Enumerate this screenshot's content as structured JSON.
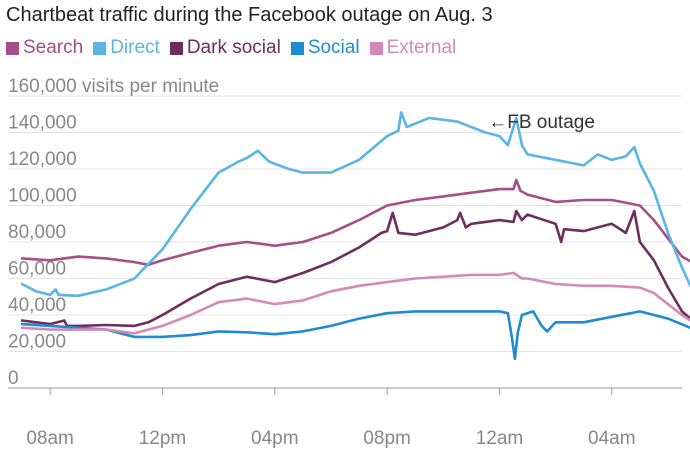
{
  "chart_data": {
    "type": "line",
    "title": "Chartbeat traffic during the Facebook outage on Aug. 3",
    "ylabel_unit": "visits per minute",
    "ylim": [
      0,
      160000
    ],
    "yticks": [
      0,
      20000,
      40000,
      60000,
      80000,
      100000,
      120000,
      140000,
      160000
    ],
    "ytick_labels": [
      "0",
      "20,000",
      "40,000",
      "60,000",
      "80,000",
      "100,000",
      "120,000",
      "140,000",
      "160,000 visits per minute"
    ],
    "xlim": [
      6.5,
      30.5
    ],
    "x_unit": "hour of day (Aug. 3, continuing past midnight)",
    "xticks": [
      8,
      12,
      16,
      20,
      24,
      28
    ],
    "xtick_labels": [
      "08am",
      "12pm",
      "04pm",
      "08pm",
      "12am",
      "04am"
    ],
    "grid": "horizontal",
    "legend_position": "top-left",
    "annotation": {
      "text": "←FB outage",
      "x": 23.6,
      "y": 142000
    },
    "series": [
      {
        "name": "Search",
        "color": "#a64d8b",
        "points": [
          [
            7,
            71000
          ],
          [
            8,
            70000
          ],
          [
            9,
            72000
          ],
          [
            10,
            71000
          ],
          [
            11,
            69000
          ],
          [
            11.5,
            67500
          ],
          [
            12,
            70000
          ],
          [
            13,
            74000
          ],
          [
            14,
            78000
          ],
          [
            15,
            80000
          ],
          [
            16,
            78000
          ],
          [
            17,
            80000
          ],
          [
            18,
            85000
          ],
          [
            19,
            92000
          ],
          [
            20,
            100000
          ],
          [
            21,
            103000
          ],
          [
            22,
            105000
          ],
          [
            23,
            107000
          ],
          [
            24,
            109000
          ],
          [
            24.5,
            109000
          ],
          [
            24.6,
            114000
          ],
          [
            24.75,
            108000
          ],
          [
            25,
            106000
          ],
          [
            26,
            102000
          ],
          [
            27,
            103000
          ],
          [
            28,
            103000
          ],
          [
            29,
            100000
          ],
          [
            29.5,
            92000
          ],
          [
            30,
            82000
          ],
          [
            30.5,
            72000
          ],
          [
            30.8,
            69500
          ]
        ]
      },
      {
        "name": "Direct",
        "color": "#5ab4e5",
        "points": [
          [
            7,
            57000
          ],
          [
            7.5,
            53000
          ],
          [
            8,
            51000
          ],
          [
            8.2,
            54000
          ],
          [
            8.3,
            51000
          ],
          [
            9,
            50500
          ],
          [
            10,
            54000
          ],
          [
            11,
            60000
          ],
          [
            12,
            76000
          ],
          [
            13,
            98000
          ],
          [
            14,
            118000
          ],
          [
            14.7,
            124000
          ],
          [
            15,
            126000
          ],
          [
            15.4,
            130000
          ],
          [
            15.8,
            124000
          ],
          [
            16.5,
            120000
          ],
          [
            17,
            118000
          ],
          [
            18,
            118000
          ],
          [
            19,
            125000
          ],
          [
            20,
            138000
          ],
          [
            20.4,
            141000
          ],
          [
            20.5,
            151000
          ],
          [
            20.7,
            143000
          ],
          [
            21.5,
            148000
          ],
          [
            22.5,
            146000
          ],
          [
            23.5,
            140000
          ],
          [
            24,
            138000
          ],
          [
            24.3,
            133000
          ],
          [
            24.6,
            148000
          ],
          [
            24.8,
            133000
          ],
          [
            25,
            128000
          ],
          [
            26,
            125000
          ],
          [
            27,
            122000
          ],
          [
            27.5,
            128000
          ],
          [
            28,
            125000
          ],
          [
            28.5,
            127000
          ],
          [
            28.8,
            132000
          ],
          [
            29,
            123000
          ],
          [
            29.5,
            108000
          ],
          [
            30,
            85000
          ],
          [
            30.5,
            66000
          ],
          [
            30.8,
            56000
          ]
        ]
      },
      {
        "name": "Dark social",
        "color": "#6e2d5c",
        "points": [
          [
            7,
            37000
          ],
          [
            8,
            35000
          ],
          [
            8.5,
            37000
          ],
          [
            8.6,
            34000
          ],
          [
            9,
            34000
          ],
          [
            10,
            34500
          ],
          [
            11,
            34000
          ],
          [
            11.5,
            36000
          ],
          [
            12,
            40000
          ],
          [
            13,
            49000
          ],
          [
            14,
            57000
          ],
          [
            15,
            61000
          ],
          [
            16,
            58000
          ],
          [
            17,
            63000
          ],
          [
            18,
            69000
          ],
          [
            19,
            77000
          ],
          [
            19.8,
            85000
          ],
          [
            20,
            86000
          ],
          [
            20.2,
            96000
          ],
          [
            20.4,
            85000
          ],
          [
            21,
            84000
          ],
          [
            22,
            88000
          ],
          [
            22.5,
            92000
          ],
          [
            22.6,
            96000
          ],
          [
            22.8,
            88000
          ],
          [
            23,
            90000
          ],
          [
            24,
            92000
          ],
          [
            24.5,
            91000
          ],
          [
            24.6,
            97000
          ],
          [
            24.8,
            92000
          ],
          [
            25,
            95000
          ],
          [
            26,
            90000
          ],
          [
            26.2,
            80000
          ],
          [
            26.3,
            87000
          ],
          [
            27,
            86000
          ],
          [
            27.5,
            88000
          ],
          [
            28,
            90000
          ],
          [
            28.5,
            85000
          ],
          [
            28.8,
            97000
          ],
          [
            29,
            80000
          ],
          [
            29.5,
            70000
          ],
          [
            30,
            55000
          ],
          [
            30.5,
            42000
          ],
          [
            30.8,
            38000
          ]
        ]
      },
      {
        "name": "Social",
        "color": "#1f8bd3",
        "points": [
          [
            7,
            35000
          ],
          [
            8,
            34000
          ],
          [
            9,
            33000
          ],
          [
            10,
            32000
          ],
          [
            11,
            28000
          ],
          [
            12,
            28000
          ],
          [
            13,
            29000
          ],
          [
            14,
            31000
          ],
          [
            15,
            30500
          ],
          [
            16,
            29500
          ],
          [
            17,
            31000
          ],
          [
            18,
            34000
          ],
          [
            19,
            38000
          ],
          [
            20,
            41000
          ],
          [
            21,
            42000
          ],
          [
            22,
            42000
          ],
          [
            23,
            42000
          ],
          [
            24,
            42000
          ],
          [
            24.3,
            41000
          ],
          [
            24.45,
            27000
          ],
          [
            24.55,
            16000
          ],
          [
            24.65,
            30000
          ],
          [
            24.8,
            40000
          ],
          [
            25,
            41000
          ],
          [
            25.2,
            42000
          ],
          [
            25.5,
            34000
          ],
          [
            25.7,
            31000
          ],
          [
            26,
            36000
          ],
          [
            27,
            36000
          ],
          [
            28,
            39000
          ],
          [
            29,
            42000
          ],
          [
            30,
            38000
          ],
          [
            30.8,
            33000
          ]
        ]
      },
      {
        "name": "External",
        "color": "#d48ab8",
        "points": [
          [
            7,
            33000
          ],
          [
            8,
            32000
          ],
          [
            9,
            32000
          ],
          [
            10,
            32000
          ],
          [
            11,
            30000
          ],
          [
            12,
            34000
          ],
          [
            13,
            40000
          ],
          [
            14,
            47000
          ],
          [
            15,
            49000
          ],
          [
            16,
            46000
          ],
          [
            17,
            48000
          ],
          [
            18,
            53000
          ],
          [
            19,
            56000
          ],
          [
            20,
            58000
          ],
          [
            21,
            60000
          ],
          [
            22,
            61000
          ],
          [
            23,
            62000
          ],
          [
            24,
            62000
          ],
          [
            24.5,
            63000
          ],
          [
            24.8,
            60000
          ],
          [
            25,
            60000
          ],
          [
            26,
            57000
          ],
          [
            27,
            56000
          ],
          [
            28,
            56000
          ],
          [
            29,
            55000
          ],
          [
            29.5,
            52000
          ],
          [
            30,
            46000
          ],
          [
            30.5,
            40000
          ],
          [
            30.8,
            37000
          ]
        ]
      }
    ]
  }
}
